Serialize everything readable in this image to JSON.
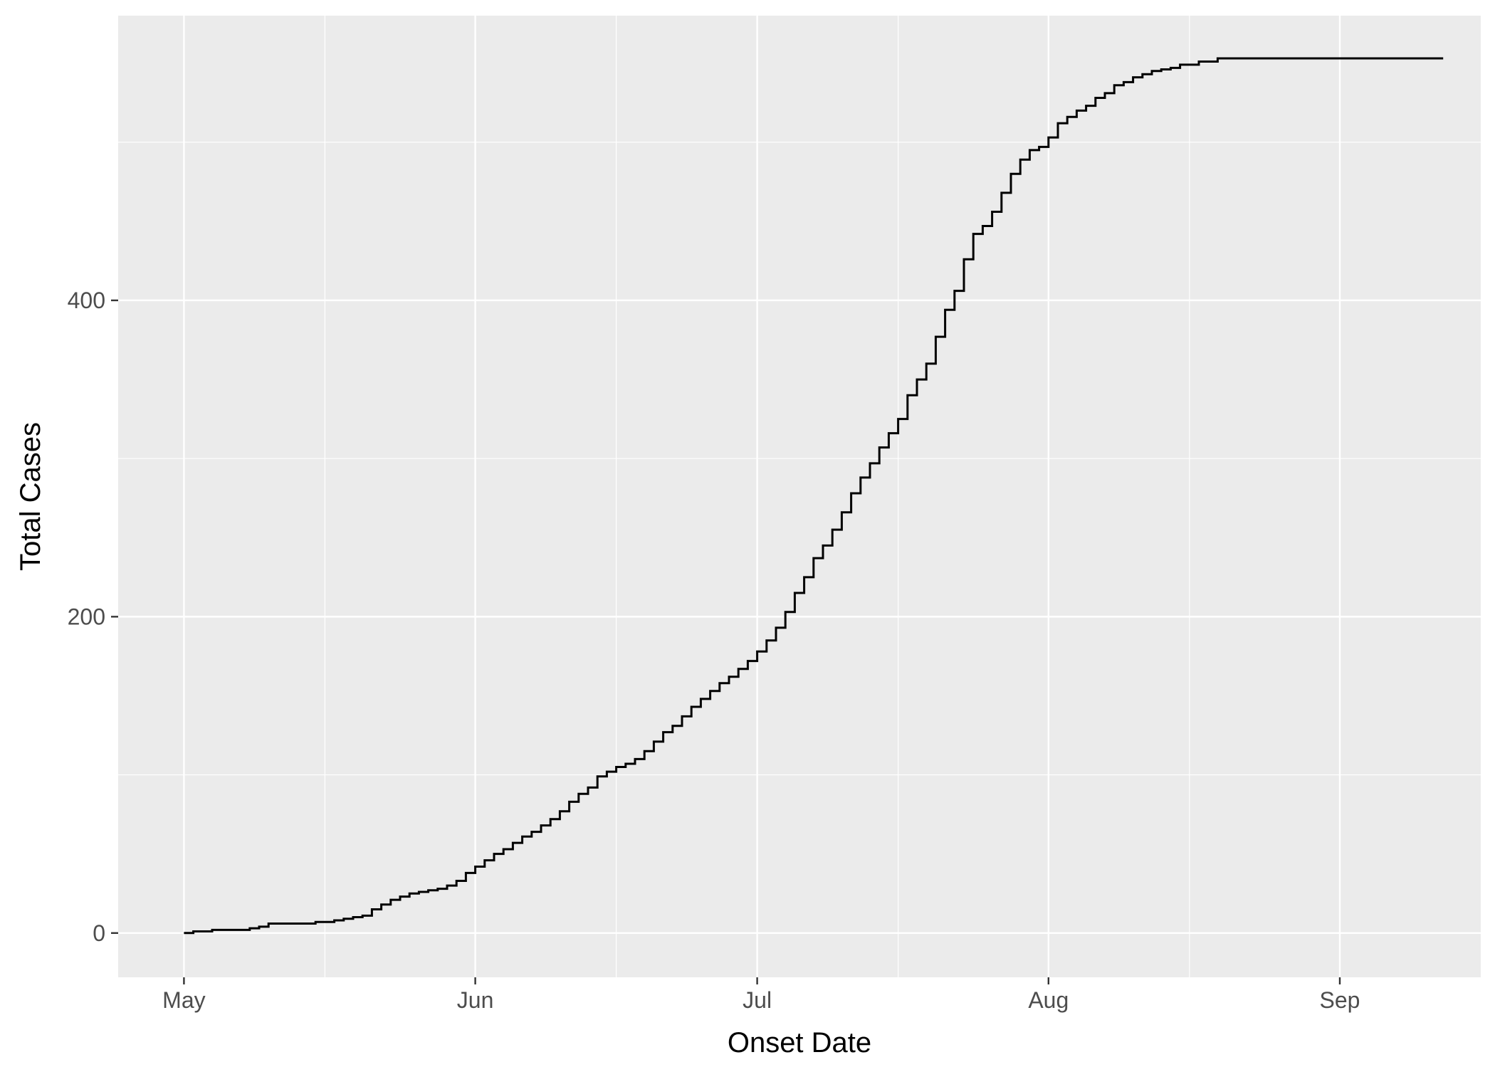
{
  "chart_data": {
    "type": "line",
    "step": true,
    "xlabel": "Onset Date",
    "ylabel": "Total Cases",
    "x_ticks": [
      {
        "label": "May",
        "date": "2014-05-01"
      },
      {
        "label": "Jun",
        "date": "2014-06-01"
      },
      {
        "label": "Jul",
        "date": "2014-07-01"
      },
      {
        "label": "Aug",
        "date": "2014-08-01"
      },
      {
        "label": "Sep",
        "date": "2014-09-01"
      }
    ],
    "y_ticks": [
      0,
      200,
      400
    ],
    "xlim": [
      "2014-04-24",
      "2014-09-16"
    ],
    "ylim": [
      -28,
      580
    ],
    "grid": true,
    "colors": {
      "panel": "#ebebeb",
      "grid": "#ffffff",
      "line": "#000000",
      "tick_text": "#4d4d4d"
    },
    "series": [
      {
        "x": [
          "2014-05-01",
          "2014-05-02",
          "2014-05-04",
          "2014-05-08",
          "2014-05-09",
          "2014-05-10",
          "2014-05-15",
          "2014-05-17",
          "2014-05-18",
          "2014-05-19",
          "2014-05-20",
          "2014-05-21",
          "2014-05-22",
          "2014-05-23",
          "2014-05-24",
          "2014-05-25",
          "2014-05-26",
          "2014-05-27",
          "2014-05-28",
          "2014-05-29",
          "2014-05-30",
          "2014-05-31",
          "2014-06-01",
          "2014-06-02",
          "2014-06-03",
          "2014-06-04",
          "2014-06-05",
          "2014-06-06",
          "2014-06-07",
          "2014-06-08",
          "2014-06-09",
          "2014-06-10",
          "2014-06-11",
          "2014-06-12",
          "2014-06-13",
          "2014-06-14",
          "2014-06-15",
          "2014-06-16",
          "2014-06-17",
          "2014-06-18",
          "2014-06-19",
          "2014-06-20",
          "2014-06-21",
          "2014-06-22",
          "2014-06-23",
          "2014-06-24",
          "2014-06-25",
          "2014-06-26",
          "2014-06-27",
          "2014-06-28",
          "2014-06-29",
          "2014-06-30",
          "2014-07-01",
          "2014-07-02",
          "2014-07-03",
          "2014-07-04",
          "2014-07-05",
          "2014-07-06",
          "2014-07-07",
          "2014-07-08",
          "2014-07-09",
          "2014-07-10",
          "2014-07-11",
          "2014-07-12",
          "2014-07-13",
          "2014-07-14",
          "2014-07-15",
          "2014-07-16",
          "2014-07-17",
          "2014-07-18",
          "2014-07-19",
          "2014-07-20",
          "2014-07-21",
          "2014-07-22",
          "2014-07-23",
          "2014-07-24",
          "2014-07-25",
          "2014-07-26",
          "2014-07-27",
          "2014-07-28",
          "2014-07-29",
          "2014-07-30",
          "2014-07-31",
          "2014-08-01",
          "2014-08-02",
          "2014-08-03",
          "2014-08-04",
          "2014-08-05",
          "2014-08-06",
          "2014-08-07",
          "2014-08-08",
          "2014-08-09",
          "2014-08-10",
          "2014-08-11",
          "2014-08-12",
          "2014-08-13",
          "2014-08-14",
          "2014-08-15",
          "2014-08-17",
          "2014-08-19",
          "2014-09-12"
        ],
        "y": [
          0,
          1,
          2,
          3,
          4,
          6,
          7,
          8,
          9,
          10,
          11,
          15,
          18,
          21,
          23,
          25,
          26,
          27,
          28,
          30,
          33,
          38,
          42,
          46,
          50,
          53,
          57,
          61,
          64,
          68,
          72,
          77,
          83,
          88,
          92,
          99,
          102,
          105,
          107,
          110,
          115,
          121,
          127,
          131,
          137,
          143,
          148,
          153,
          158,
          162,
          167,
          172,
          178,
          185,
          193,
          203,
          215,
          225,
          237,
          245,
          255,
          266,
          278,
          288,
          297,
          307,
          316,
          325,
          340,
          350,
          360,
          377,
          394,
          406,
          426,
          442,
          447,
          456,
          468,
          480,
          489,
          495,
          497,
          503,
          512,
          516,
          520,
          523,
          528,
          531,
          536,
          538,
          541,
          543,
          545,
          546,
          547,
          549,
          551,
          553,
          553
        ]
      }
    ]
  }
}
